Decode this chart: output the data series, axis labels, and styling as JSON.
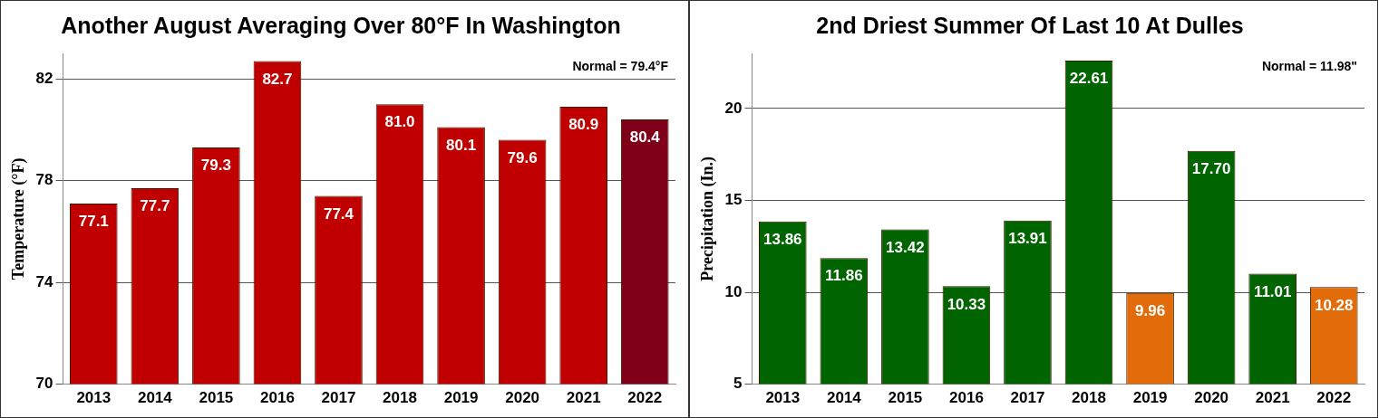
{
  "chart_data": [
    {
      "type": "bar",
      "title": "Another August Averaging Over 80°F In Washington",
      "ylabel": "Temperature (°F)",
      "categories": [
        "2013",
        "2014",
        "2015",
        "2016",
        "2017",
        "2018",
        "2019",
        "2020",
        "2021",
        "2022"
      ],
      "values": [
        77.1,
        77.7,
        79.3,
        82.7,
        77.4,
        81.0,
        80.1,
        79.6,
        80.9,
        80.4
      ],
      "colors": [
        "#c00000",
        "#c00000",
        "#c00000",
        "#c00000",
        "#c00000",
        "#c00000",
        "#c00000",
        "#c00000",
        "#c00000",
        "#80001a"
      ],
      "ylim": [
        70,
        83
      ],
      "yticks": [
        70,
        74,
        78,
        82
      ],
      "grid": "y",
      "legend": false,
      "data_labels": true,
      "value_labels": [
        "77.1",
        "77.7",
        "79.3",
        "82.7",
        "77.4",
        "81.0",
        "80.1",
        "79.6",
        "80.9",
        "80.4"
      ],
      "annotations": [
        "Normal = 79.4°F"
      ]
    },
    {
      "type": "bar",
      "title": "2nd Driest Summer Of Last 10 At Dulles",
      "ylabel": "Precipitation (In.)",
      "categories": [
        "2013",
        "2014",
        "2015",
        "2016",
        "2017",
        "2018",
        "2019",
        "2020",
        "2021",
        "2022"
      ],
      "values": [
        13.86,
        11.86,
        13.42,
        10.33,
        13.91,
        22.61,
        9.96,
        17.7,
        11.01,
        10.28
      ],
      "colors": [
        "#006400",
        "#006400",
        "#006400",
        "#006400",
        "#006400",
        "#006400",
        "#e36c0a",
        "#006400",
        "#006400",
        "#e36c0a"
      ],
      "ylim": [
        5,
        23
      ],
      "yticks": [
        5,
        10,
        15,
        20
      ],
      "grid": "y",
      "legend": false,
      "data_labels": true,
      "value_labels": [
        "13.86",
        "11.86",
        "13.42",
        "10.33",
        "13.91",
        "22.61",
        "9.96",
        "17.70",
        "11.01",
        "10.28"
      ],
      "annotations": [
        "Normal = 11.98\""
      ]
    }
  ]
}
